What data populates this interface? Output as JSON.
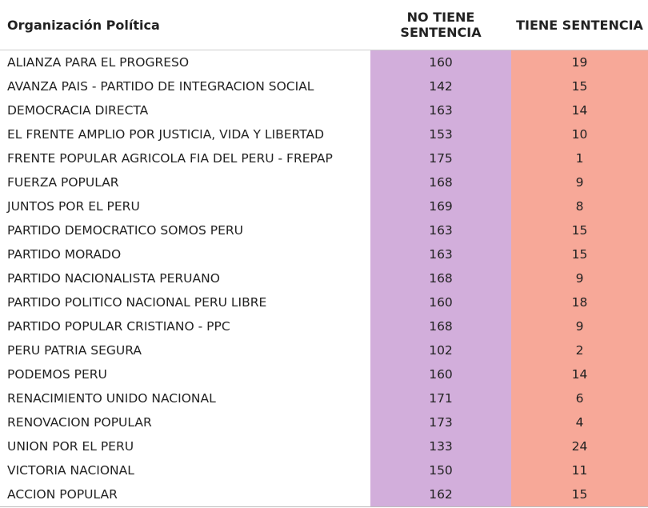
{
  "colors": {
    "no_tiene": "#d2aedb",
    "tiene": "#f7a898"
  },
  "chart_data": {
    "type": "table",
    "columns": [
      "Organización Política",
      "NO TIENE SENTENCIA",
      "TIENE SENTENCIA"
    ],
    "rows": [
      [
        "ALIANZA PARA EL PROGRESO",
        160,
        19
      ],
      [
        "AVANZA PAIS - PARTIDO DE INTEGRACION SOCIAL",
        142,
        15
      ],
      [
        "DEMOCRACIA DIRECTA",
        163,
        14
      ],
      [
        "EL FRENTE AMPLIO POR JUSTICIA, VIDA Y LIBERTAD",
        153,
        10
      ],
      [
        "FRENTE POPULAR AGRICOLA FIA DEL PERU - FREPAP",
        175,
        1
      ],
      [
        "FUERZA POPULAR",
        168,
        9
      ],
      [
        "JUNTOS POR EL PERU",
        169,
        8
      ],
      [
        "PARTIDO DEMOCRATICO SOMOS PERU",
        163,
        15
      ],
      [
        "PARTIDO MORADO",
        163,
        15
      ],
      [
        "PARTIDO NACIONALISTA PERUANO",
        168,
        9
      ],
      [
        "PARTIDO POLITICO NACIONAL PERU LIBRE",
        160,
        18
      ],
      [
        "PARTIDO POPULAR CRISTIANO - PPC",
        168,
        9
      ],
      [
        "PERU PATRIA SEGURA",
        102,
        2
      ],
      [
        "PODEMOS PERU",
        160,
        14
      ],
      [
        "RENACIMIENTO UNIDO NACIONAL",
        171,
        6
      ],
      [
        "RENOVACION POPULAR",
        173,
        4
      ],
      [
        "UNION POR EL PERU",
        133,
        24
      ],
      [
        "VICTORIA NACIONAL",
        150,
        11
      ],
      [
        "ACCION POPULAR",
        162,
        15
      ]
    ]
  }
}
